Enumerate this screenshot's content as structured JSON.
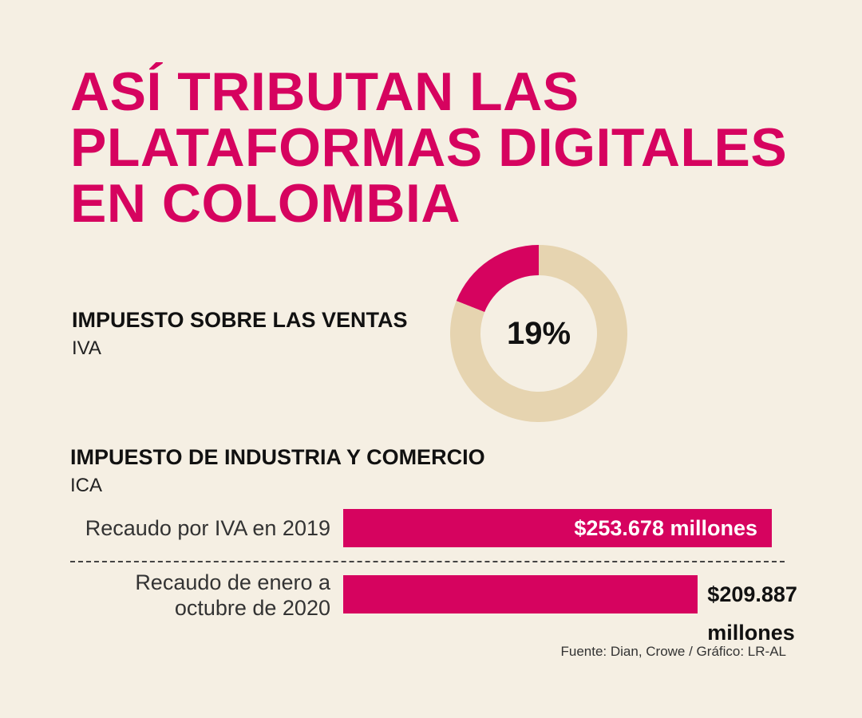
{
  "title": "ASÍ TRIBUTAN LAS PLATAFORMAS DIGITALES EN COLOMBIA",
  "iva": {
    "name": "IMPUESTO SOBRE LAS VENTAS",
    "abbr": "IVA",
    "rate_label": "19%",
    "rate": 19
  },
  "ica": {
    "name": "IMPUESTO DE INDUSTRIA Y COMERCIO",
    "abbr": "ICA"
  },
  "source": "Fuente: Dian, Crowe / Gráfico: LR-AL",
  "colors": {
    "accent": "#d6035f",
    "donut_rest": "#e6d4b0",
    "background": "#f5efe3"
  },
  "chart_data": [
    {
      "type": "pie",
      "categories": [
        "IVA",
        ""
      ],
      "values": [
        19,
        81
      ],
      "center_label": "19%"
    },
    {
      "type": "bar",
      "orientation": "horizontal",
      "categories": [
        "Recaudo por IVA en 2019",
        "Recaudo de enero a octubre de 2020"
      ],
      "values": [
        253678,
        209887
      ],
      "value_labels": [
        "$253.678 millones",
        "$209.887 millones"
      ],
      "unit": "millones"
    }
  ]
}
